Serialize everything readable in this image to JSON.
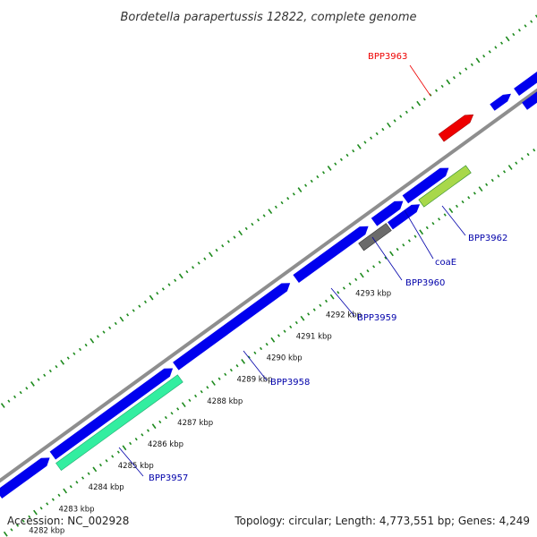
{
  "title": "Bordetella parapertussis 12822, complete genome",
  "footer": {
    "accession": "Accession: NC_002928",
    "stats": "Topology: circular; Length: 4,773,551 bp; Genes: 4,249"
  },
  "colors": {
    "backbone": "#8e8e8e",
    "gene_blue": "#0000ee",
    "ticks": "#1d8a1d",
    "highlight_red": "#ee0000",
    "highlight_green": "#33eea0",
    "gray_gene": "#6b6b6b",
    "striped_gene": "#a8d84a",
    "label_blue": "#0000aa",
    "label_red": "#ee0000"
  },
  "kbp_labels": [
    "4282 kbp",
    "4283 kbp",
    "4284 kbp",
    "4285 kbp",
    "4286 kbp",
    "4287 kbp",
    "4288 kbp",
    "4289 kbp",
    "4290 kbp",
    "4291 kbp",
    "4292 kbp",
    "4293 kbp"
  ],
  "gene_labels": [
    {
      "text": "BPP3957",
      "color": "label_blue"
    },
    {
      "text": "BPP3958",
      "color": "label_blue"
    },
    {
      "text": "BPP3959",
      "color": "label_blue"
    },
    {
      "text": "BPP3960",
      "color": "label_blue"
    },
    {
      "text": "coaE",
      "color": "label_blue"
    },
    {
      "text": "BPP3962",
      "color": "label_blue"
    },
    {
      "text": "BPP3963",
      "color": "label_red"
    }
  ]
}
